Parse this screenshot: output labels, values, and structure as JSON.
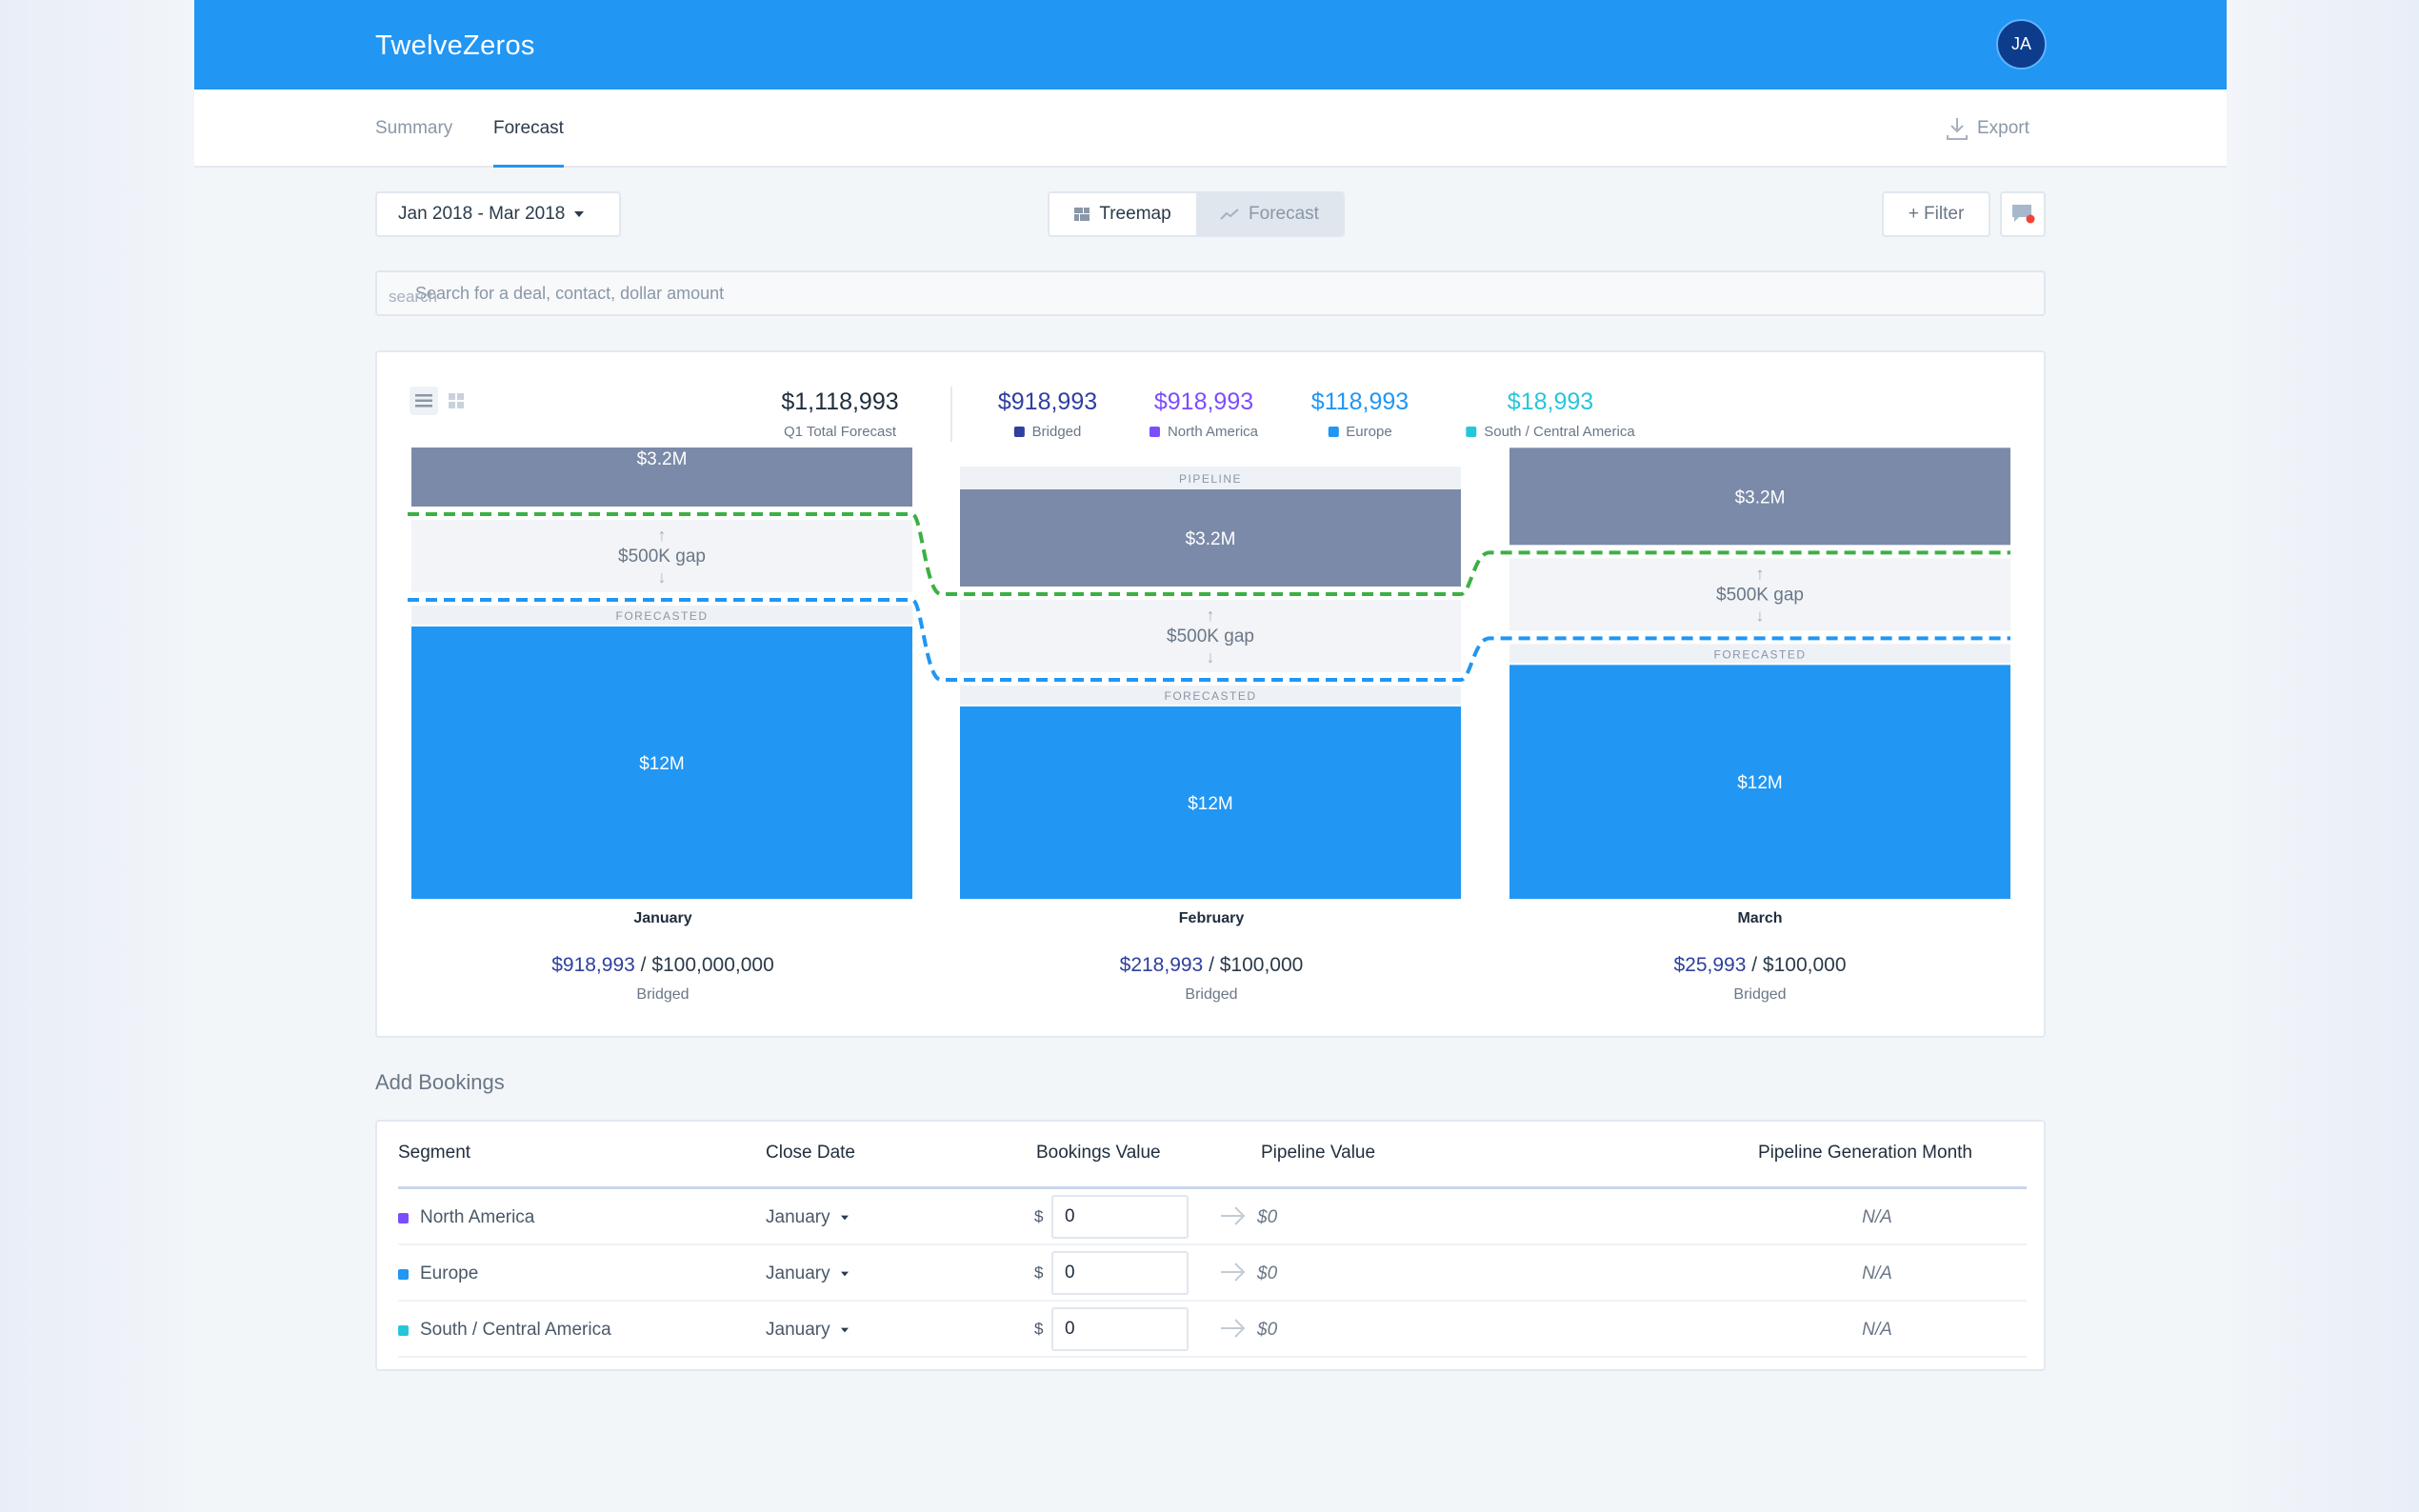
{
  "app": {
    "brand": "TwelveZeros",
    "avatar_initials": "JA"
  },
  "tabs": [
    {
      "label": "Summary",
      "active": false
    },
    {
      "label": "Forecast",
      "active": true
    }
  ],
  "export_label": "Export",
  "toolbar": {
    "date_range": "Jan 2018 - Mar 2018",
    "view_toggle": [
      {
        "label": "Treemap",
        "selected": true
      },
      {
        "label": "Forecast",
        "selected": false
      }
    ],
    "filter_label": "+ Filter"
  },
  "search": {
    "hint": "search",
    "placeholder": "Search for a deal, contact, dollar amount"
  },
  "summary": {
    "total": {
      "value": "$1,118,993",
      "label": "Q1 Total Forecast"
    },
    "breakdown": [
      {
        "value": "$918,993",
        "label": "Bridged",
        "color": "#2e3f9e"
      },
      {
        "value": "$918,993",
        "label": "North America",
        "color": "#7c4dff"
      },
      {
        "value": "$118,993",
        "label": "Europe",
        "color": "#2196f3"
      },
      {
        "value": "$18,993",
        "label": "South / Central America",
        "color": "#26c6da"
      }
    ]
  },
  "chart_data": {
    "type": "bar",
    "categories": [
      "January",
      "February",
      "March"
    ],
    "series": [
      {
        "name": "PIPELINE",
        "values": [
          3.2,
          3.2,
          3.2
        ],
        "labels": [
          "$3.2M",
          "$3.2M",
          "$3.2M"
        ],
        "color": "#7b8aa8"
      },
      {
        "name": "FORECASTED",
        "values": [
          12,
          12,
          12
        ],
        "labels": [
          "$12M",
          "$12M",
          "$12M"
        ],
        "color": "#2196f3"
      }
    ],
    "gap_labels": [
      "$500K gap",
      "$500K gap",
      "$500K gap"
    ],
    "gap_level": [
      0,
      1,
      0.48
    ],
    "bridged": [
      {
        "value": "$918,993",
        "target": "$100,000,000",
        "label": "Bridged"
      },
      {
        "value": "$218,993",
        "target": "$100,000",
        "label": "Bridged"
      },
      {
        "value": "$25,993",
        "target": "$100,000",
        "label": "Bridged"
      }
    ],
    "lines": [
      {
        "style": "dashed",
        "color": "#3cb043"
      },
      {
        "style": "dashed",
        "color": "#2196f3"
      }
    ]
  },
  "bookings": {
    "title": "Add Bookings",
    "columns": [
      "Segment",
      "Close Date",
      "Bookings Value",
      "Pipeline Value",
      "Pipeline Generation Month"
    ],
    "currency": "$",
    "rows": [
      {
        "segment": "North America",
        "color": "#7c4dff",
        "close_date": "January",
        "value": "0",
        "pipeline_value": "$0",
        "gen_month": "N/A"
      },
      {
        "segment": "Europe",
        "color": "#2196f3",
        "close_date": "January",
        "value": "0",
        "pipeline_value": "$0",
        "gen_month": "N/A"
      },
      {
        "segment": "South / Central America",
        "color": "#26c6da",
        "close_date": "January",
        "value": "0",
        "pipeline_value": "$0",
        "gen_month": "N/A"
      }
    ]
  }
}
